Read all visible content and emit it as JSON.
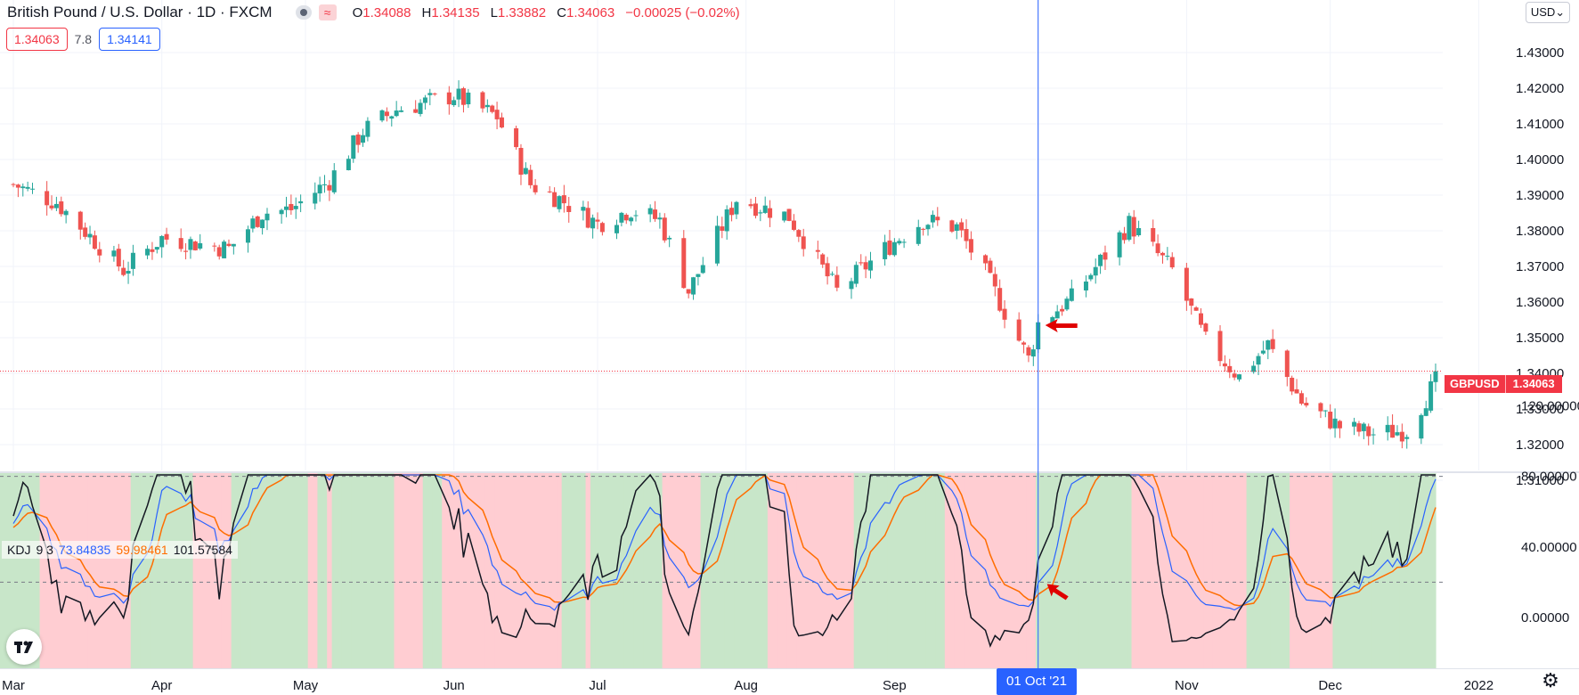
{
  "header": {
    "title": "British Pound / U.S. Dollar · 1D · FXCM",
    "wave_glyph": "≈",
    "ohlc": [
      {
        "key": "O",
        "value": "1.34088"
      },
      {
        "key": "H",
        "value": "1.34135"
      },
      {
        "key": "L",
        "value": "1.33882"
      },
      {
        "key": "C",
        "value": "1.34063"
      },
      {
        "key": "",
        "value": "−0.00025 (−0.02%)"
      }
    ]
  },
  "quotes": {
    "sell": "1.34063",
    "spread": "7.8",
    "buy": "1.34141"
  },
  "currency_button": "USD",
  "last_price_tag": {
    "symbol": "GBPUSD",
    "price": "1.34063",
    "color": "#f23645"
  },
  "crosshair_date": "01 Oct '21",
  "indicator": {
    "name": "KDJ",
    "params": "9 3",
    "k_value": "73.84835",
    "d_value": "59.98461",
    "j_value": "101.57584",
    "colors": {
      "k": "#2962ff",
      "d": "#ff6d00",
      "j": "#131722"
    }
  },
  "colors": {
    "up": "#26a69a",
    "down": "#ef5350",
    "bull_zone": "#c8e6c9",
    "bear_zone": "#ffcdd2",
    "crosshair": "#2962ff"
  },
  "icons": {
    "logo": "tradingview-logo-icon",
    "settings": "gear-icon",
    "visibility": "eye-icon",
    "source": "wave-icon"
  },
  "chart_data": [
    {
      "type": "candlestick",
      "title": "British Pound / U.S. Dollar · 1D · FXCM",
      "y_axis": {
        "ticks": [
          "1.43000",
          "1.42000",
          "1.41000",
          "1.40000",
          "1.39000",
          "1.38000",
          "1.37000",
          "1.36000",
          "1.35000",
          "1.34000",
          "1.33000",
          "1.32000",
          "1.31000"
        ],
        "range": [
          1.3065,
          1.4365
        ]
      },
      "x_axis": {
        "ticks": [
          "Mar",
          "Apr",
          "May",
          "Jun",
          "Jul",
          "Aug",
          "Sep",
          "01 Oct '21",
          "Nov",
          "Dec",
          "2022"
        ]
      },
      "grid": true,
      "closes": [
        {
          "date": "2021-03-01",
          "close": 1.393
        },
        {
          "date": "2021-03-10",
          "close": 1.388
        },
        {
          "date": "2021-03-24",
          "close": 1.369
        },
        {
          "date": "2021-04-01",
          "close": 1.378
        },
        {
          "date": "2021-04-15",
          "close": 1.375
        },
        {
          "date": "2021-04-22",
          "close": 1.385
        },
        {
          "date": "2021-04-28",
          "close": 1.386
        },
        {
          "date": "2021-05-06",
          "close": 1.394
        },
        {
          "date": "2021-05-13",
          "close": 1.408
        },
        {
          "date": "2021-05-20",
          "close": 1.414
        },
        {
          "date": "2021-06-01",
          "close": 1.418
        },
        {
          "date": "2021-06-10",
          "close": 1.412
        },
        {
          "date": "2021-06-17",
          "close": 1.393
        },
        {
          "date": "2021-06-23",
          "close": 1.389
        },
        {
          "date": "2021-07-01",
          "close": 1.382
        },
        {
          "date": "2021-07-08",
          "close": 1.386
        },
        {
          "date": "2021-07-14",
          "close": 1.383
        },
        {
          "date": "2021-07-20",
          "close": 1.363
        },
        {
          "date": "2021-07-30",
          "close": 1.389
        },
        {
          "date": "2021-08-10",
          "close": 1.384
        },
        {
          "date": "2021-08-20",
          "close": 1.363
        },
        {
          "date": "2021-08-31",
          "close": 1.376
        },
        {
          "date": "2021-09-07",
          "close": 1.383
        },
        {
          "date": "2021-09-14",
          "close": 1.381
        },
        {
          "date": "2021-09-20",
          "close": 1.368
        },
        {
          "date": "2021-09-29",
          "close": 1.344
        },
        {
          "date": "2021-10-01",
          "close": 1.354
        },
        {
          "date": "2021-10-08",
          "close": 1.361
        },
        {
          "date": "2021-10-20",
          "close": 1.382
        },
        {
          "date": "2021-10-29",
          "close": 1.369
        },
        {
          "date": "2021-11-05",
          "close": 1.349
        },
        {
          "date": "2021-11-12",
          "close": 1.339
        },
        {
          "date": "2021-11-18",
          "close": 1.348
        },
        {
          "date": "2021-11-25",
          "close": 1.332
        },
        {
          "date": "2021-12-03",
          "close": 1.325
        },
        {
          "date": "2021-12-10",
          "close": 1.323
        },
        {
          "date": "2021-12-17",
          "close": 1.324
        },
        {
          "date": "2021-12-24",
          "close": 1.34
        }
      ],
      "annotations": [
        "red arrow pointing at the 2021-10-01 candle"
      ]
    },
    {
      "type": "line",
      "title": "KDJ 9 3",
      "y_axis": {
        "ticks": [
          "120.00000",
          "80.00000",
          "40.00000",
          "0.00000"
        ],
        "range": [
          -28,
          122
        ]
      },
      "reference_lines": [
        20,
        80
      ],
      "series": [
        {
          "name": "K",
          "color": "#2962ff",
          "last": 73.84835
        },
        {
          "name": "D",
          "color": "#ff6d00",
          "last": 59.98461
        },
        {
          "name": "J",
          "color": "#131722",
          "last": 101.57584
        }
      ],
      "annotations": [
        "red arrow near the 2021-10-01 K/D cross"
      ]
    }
  ]
}
